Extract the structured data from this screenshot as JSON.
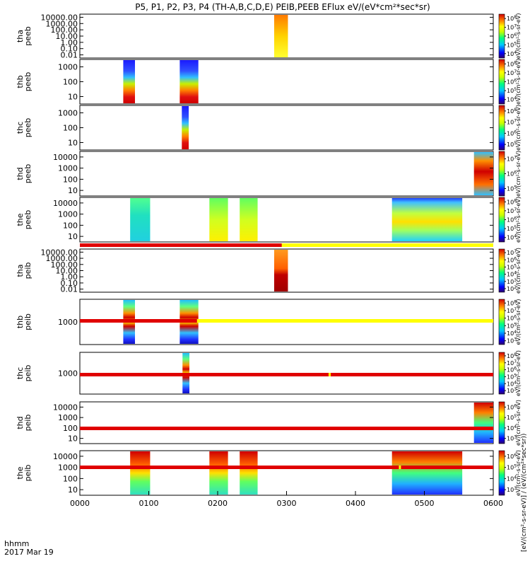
{
  "title": "P5, P1, P2, P3, P4 (TH-A,B,C,D,E) PEIB,PEEB EFlux eV/(eV*cm²*sec*sr)",
  "footer": {
    "xunit": "hhmm",
    "date": "2017 Mar 19",
    "colorbar_axis_label": "[eV/(cm²-s-sr-eV)] / (eV/(cm²*sec*sr))"
  },
  "chart_data": {
    "type": "heatmap",
    "x_range_hours": [
      0,
      6
    ],
    "x_ticks": [
      "0000",
      "0100",
      "0200",
      "0300",
      "0400",
      "0500",
      "0600"
    ],
    "panels": [
      {
        "name": "tha-peeb",
        "ylabel": [
          "tha",
          "peeb"
        ],
        "y_ticks": [
          "10000.00",
          "1000.00",
          "100.00",
          "10.00",
          "1.00",
          "0.10",
          "0.01"
        ],
        "segments": [
          {
            "start": 2.82,
            "end": 3.02,
            "style": "warm"
          }
        ],
        "colorbar": {
          "ticks": [
            "10^8",
            "10^7",
            "10^6",
            "10^5",
            "10^4"
          ],
          "label": "eV/(cm²-s-sr-eV)"
        }
      },
      {
        "name": "thb-peeb",
        "ylabel": [
          "thb",
          "peeb"
        ],
        "y_ticks": [
          "1000",
          "100",
          "10"
        ],
        "segments": [
          {
            "start": 0.63,
            "end": 0.8,
            "style": "bluered"
          },
          {
            "start": 1.45,
            "end": 1.72,
            "style": "bluered"
          }
        ],
        "colorbar": {
          "ticks": [
            "10^8",
            "10^7",
            "10^6",
            "10^5",
            "10^4"
          ],
          "label": "eV/(cm²-s-sr-eV)"
        }
      },
      {
        "name": "thc-peeb",
        "ylabel": [
          "thc",
          "peeb"
        ],
        "y_ticks": [
          "1000",
          "100",
          "10"
        ],
        "segments": [
          {
            "start": 1.48,
            "end": 1.58,
            "style": "bluered"
          }
        ],
        "colorbar": {
          "ticks": [
            "10^8",
            "10^7",
            "10^6",
            "10^5"
          ],
          "label": "eV/(cm²-s-sr-eV)"
        }
      },
      {
        "name": "thd-peeb",
        "ylabel": [
          "thd",
          "peeb"
        ],
        "y_ticks": [
          "10000",
          "1000",
          "100",
          "10"
        ],
        "segments": [
          {
            "start": 5.72,
            "end": 6.0,
            "style": "redcyan"
          }
        ],
        "colorbar": {
          "ticks": [
            "10^7",
            "10^6",
            "10^5"
          ],
          "label": "eV/(cm²-s-sr-eV)"
        }
      },
      {
        "name": "the-peeb",
        "ylabel": [
          "the",
          "peeb"
        ],
        "y_ticks": [
          "10000",
          "1000",
          "100",
          "10"
        ],
        "segments": [
          {
            "start": 0.73,
            "end": 1.02,
            "style": "cyan"
          },
          {
            "start": 1.88,
            "end": 2.15,
            "style": "yellowgreen"
          },
          {
            "start": 2.32,
            "end": 2.58,
            "style": "yellowgreen"
          },
          {
            "start": 4.53,
            "end": 5.55,
            "style": "yellowcyan"
          }
        ],
        "colorbar": {
          "ticks": [
            "10^8",
            "10^7",
            "10^6",
            "10^5",
            "10^4"
          ],
          "label": "eV/(cm²-s-sr-eV)"
        }
      },
      {
        "name": "tha-peib",
        "ylabel": [
          "tha",
          "peib"
        ],
        "y_ticks": [
          "10000.00",
          "1000.00",
          "100.00",
          "10.00",
          "1.00",
          "0.10",
          "0.01"
        ],
        "segments": [
          {
            "start": 2.82,
            "end": 3.02,
            "style": "orangered"
          }
        ],
        "colorbar": {
          "ticks": [
            "10^7",
            "10^6",
            "10^5",
            "10^4",
            "10^3",
            "10^2"
          ],
          "label": "eV/(cm²-s-sr-eV)"
        }
      },
      {
        "name": "thb-peib",
        "ylabel": [
          "thb",
          "peib"
        ],
        "y_ticks": [
          "1000"
        ],
        "segments": [
          {
            "start": 0.63,
            "end": 0.8,
            "style": "stripe"
          },
          {
            "start": 1.45,
            "end": 1.72,
            "style": "stripe"
          }
        ],
        "colorbar": {
          "ticks": [
            "10^8",
            "10^7",
            "10^6",
            "10^5",
            "10^4",
            "10^3"
          ],
          "label": "eV/(cm²-s-sr-eV)"
        }
      },
      {
        "name": "thc-peib",
        "ylabel": [
          "thc",
          "peib"
        ],
        "y_ticks": [
          "1000"
        ],
        "segments": [
          {
            "start": 1.49,
            "end": 1.59,
            "style": "stripe"
          }
        ],
        "colorbar": {
          "ticks": [
            "10^8",
            "10^7",
            "10^6",
            "10^5",
            "10^4",
            "10^3"
          ],
          "label": "eV/(cm²-s-sr-eV)"
        }
      },
      {
        "name": "thd-peib",
        "ylabel": [
          "thd",
          "peib"
        ],
        "y_ticks": [
          "10000",
          "1000",
          "100",
          "10"
        ],
        "segments": [
          {
            "start": 5.72,
            "end": 6.0,
            "style": "redblue"
          }
        ],
        "colorbar": {
          "ticks": [
            "10^6",
            "10^5",
            "10^4",
            "10^3"
          ],
          "label": "eV/(cm²-s-sr-eV)"
        }
      },
      {
        "name": "the-peib",
        "ylabel": [
          "the",
          "peib"
        ],
        "y_ticks": [
          "10000",
          "1000",
          "100",
          "10"
        ],
        "segments": [
          {
            "start": 0.73,
            "end": 1.02,
            "style": "redgreen"
          },
          {
            "start": 1.88,
            "end": 2.15,
            "style": "redgreen"
          },
          {
            "start": 2.32,
            "end": 2.58,
            "style": "redgreen"
          },
          {
            "start": 4.53,
            "end": 5.55,
            "style": "redblue"
          }
        ],
        "colorbar": {
          "ticks": [
            "10^6",
            "10^5",
            "10^4",
            "10^3"
          ],
          "label": "eV/(cm²-s-sr-eV)"
        }
      }
    ],
    "status_bars": [
      {
        "name": "status-bar-tha",
        "red_until": 2.93
      },
      {
        "name": "status-bar-thb",
        "red_until": 1.7
      },
      {
        "name": "status-bar-thc",
        "red_until": 6.0,
        "yellow_mark": 3.62
      },
      {
        "name": "status-bar-thd",
        "red_until": 6.0
      },
      {
        "name": "status-bar-the",
        "red_until": 6.0,
        "yellow_mark": 4.64
      }
    ]
  }
}
